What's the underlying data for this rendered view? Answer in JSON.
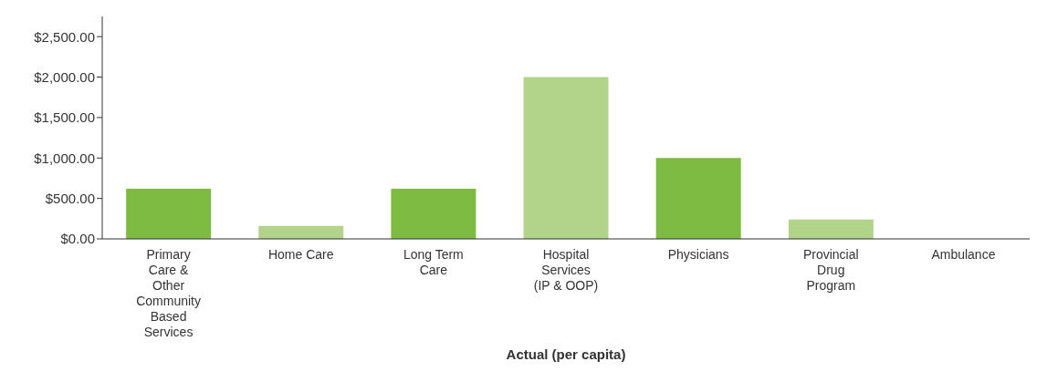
{
  "chart_data": {
    "type": "bar",
    "xlabel": "Actual (per capita)",
    "categories": [
      "Primary Care & Other Community Based Services",
      "Home Care",
      "Long Term Care",
      "Hospital Services (IP & OOP)",
      "Physicians",
      "Provincial Drug Program",
      "Ambulance"
    ],
    "values": [
      620,
      160,
      620,
      2000,
      1000,
      240,
      0
    ],
    "colors": [
      "#7dbb42",
      "#b2d38a",
      "#7dbb42",
      "#b2d38a",
      "#7dbb42",
      "#b2d38a",
      "#7dbb42"
    ],
    "ylim": [
      0,
      2750
    ],
    "yticks": [
      {
        "value": 0,
        "label": "$0.00"
      },
      {
        "value": 500,
        "label": "$500.00"
      },
      {
        "value": 1000,
        "label": "$1,000.00"
      },
      {
        "value": 1500,
        "label": "$1,500.00"
      },
      {
        "value": 2000,
        "label": "$2,000.00"
      },
      {
        "value": 2500,
        "label": "$2,500.00"
      }
    ],
    "grid": false,
    "legend": false
  }
}
